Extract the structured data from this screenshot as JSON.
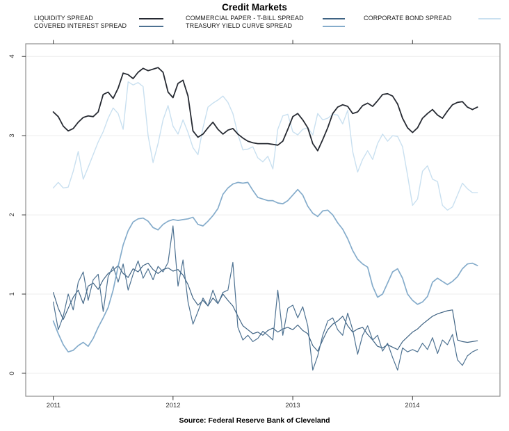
{
  "header": {
    "title": "Credit Markets"
  },
  "footer": {
    "source_note": "Source: Federal Reserve Bank of Cleveland"
  },
  "chart_data": {
    "type": "line",
    "title": "Credit Markets",
    "xlabel": "",
    "ylabel": "",
    "x_start": 2011.0,
    "x_step": 0.0416667,
    "x_ticks": [
      2011,
      2012,
      2013,
      2014
    ],
    "x_tick_labels": [
      "2011",
      "2012",
      "2013",
      "2014"
    ],
    "y_ticks": [
      0,
      1,
      2,
      3,
      4
    ],
    "y_tick_labels": [
      "0",
      "1",
      "2",
      "3",
      "4"
    ],
    "xlim": [
      2010.77,
      2014.73
    ],
    "ylim": [
      -0.29,
      4.16
    ],
    "grid": "horizontal-only",
    "grid_color": "#ececec",
    "box_color": "#8f8f8f",
    "tick_color": "#333333",
    "legend_position": "top",
    "source": "Source: Federal Reserve Bank of Cleveland",
    "series": [
      {
        "name": "LIQUIDITY SPREAD",
        "color": "#262a32",
        "width": 1.8,
        "values": [
          3.3,
          3.24,
          3.12,
          3.06,
          3.09,
          3.17,
          3.23,
          3.25,
          3.24,
          3.3,
          3.52,
          3.55,
          3.47,
          3.6,
          3.79,
          3.77,
          3.72,
          3.8,
          3.85,
          3.82,
          3.84,
          3.86,
          3.8,
          3.55,
          3.48,
          3.66,
          3.7,
          3.5,
          3.06,
          2.98,
          3.02,
          3.1,
          3.17,
          3.08,
          3.02,
          3.07,
          3.09,
          3.02,
          2.97,
          2.93,
          2.91,
          2.9,
          2.9,
          2.9,
          2.89,
          2.88,
          2.93,
          3.08,
          3.24,
          3.28,
          3.2,
          3.1,
          2.9,
          2.81,
          2.95,
          3.1,
          3.28,
          3.36,
          3.39,
          3.37,
          3.28,
          3.3,
          3.38,
          3.41,
          3.37,
          3.44,
          3.52,
          3.53,
          3.5,
          3.4,
          3.22,
          3.1,
          3.04,
          3.1,
          3.22,
          3.28,
          3.33,
          3.26,
          3.22,
          3.31,
          3.39,
          3.42,
          3.43,
          3.36,
          3.33,
          3.36
        ]
      },
      {
        "name": "COVERED INTEREST SPREAD",
        "color": "#4d7191",
        "width": 1.2,
        "values": [
          0.9,
          0.55,
          0.72,
          1.0,
          0.8,
          1.15,
          1.28,
          0.92,
          1.18,
          1.25,
          0.78,
          1.22,
          1.35,
          1.15,
          1.38,
          1.05,
          1.25,
          1.42,
          1.2,
          1.32,
          1.18,
          1.35,
          1.28,
          1.4,
          1.86,
          1.1,
          1.43,
          0.9,
          0.62,
          0.78,
          0.95,
          0.85,
          1.05,
          0.88,
          1.02,
          1.05,
          1.4,
          0.58,
          0.42,
          0.48,
          0.4,
          0.44,
          0.53,
          0.48,
          0.42,
          1.05,
          0.48,
          0.82,
          0.86,
          0.7,
          0.84,
          0.6,
          0.04,
          0.22,
          0.48,
          0.66,
          0.7,
          0.55,
          0.48,
          0.76,
          0.55,
          0.24,
          0.48,
          0.6,
          0.42,
          0.48,
          0.28,
          0.38,
          0.2,
          0.04,
          0.32,
          0.27,
          0.3,
          0.27,
          0.38,
          0.3,
          0.45,
          0.25,
          0.42,
          0.36,
          0.49,
          0.17,
          0.1,
          0.22,
          0.27,
          0.3
        ]
      },
      {
        "name": "COMMERCIAL PAPER - T-BILL SPREAD",
        "color": "#3f6383",
        "width": 1.2,
        "values": [
          1.02,
          0.82,
          0.68,
          0.82,
          0.96,
          1.05,
          0.88,
          1.1,
          1.14,
          1.06,
          1.18,
          1.26,
          1.3,
          1.36,
          1.26,
          1.21,
          1.32,
          1.28,
          1.36,
          1.39,
          1.31,
          1.26,
          1.31,
          1.33,
          1.29,
          1.31,
          1.24,
          1.12,
          0.95,
          0.86,
          0.92,
          0.85,
          0.95,
          0.88,
          1.0,
          0.92,
          0.85,
          0.72,
          0.6,
          0.55,
          0.5,
          0.52,
          0.48,
          0.54,
          0.57,
          0.52,
          0.56,
          0.58,
          0.55,
          0.61,
          0.54,
          0.5,
          0.35,
          0.28,
          0.42,
          0.55,
          0.62,
          0.66,
          0.72,
          0.6,
          0.52,
          0.56,
          0.58,
          0.49,
          0.42,
          0.34,
          0.32,
          0.36,
          0.33,
          0.3,
          0.4,
          0.46,
          0.52,
          0.56,
          0.62,
          0.67,
          0.72,
          0.75,
          0.77,
          0.79,
          0.8,
          0.42,
          0.4,
          0.39,
          0.4,
          0.41
        ]
      },
      {
        "name": "TREASURY YIELD CURVE SPREAD",
        "color": "#85accb",
        "width": 1.7,
        "values": [
          0.66,
          0.5,
          0.36,
          0.27,
          0.29,
          0.35,
          0.39,
          0.34,
          0.44,
          0.58,
          0.7,
          0.83,
          1.05,
          1.35,
          1.62,
          1.8,
          1.91,
          1.95,
          1.96,
          1.92,
          1.84,
          1.81,
          1.88,
          1.92,
          1.94,
          1.93,
          1.94,
          1.95,
          1.97,
          1.88,
          1.86,
          1.92,
          1.99,
          2.08,
          2.26,
          2.34,
          2.39,
          2.41,
          2.4,
          2.41,
          2.31,
          2.22,
          2.2,
          2.18,
          2.18,
          2.15,
          2.14,
          2.18,
          2.25,
          2.32,
          2.25,
          2.11,
          2.02,
          1.98,
          2.05,
          2.06,
          2.0,
          1.9,
          1.82,
          1.7,
          1.55,
          1.44,
          1.38,
          1.34,
          1.1,
          0.96,
          1.0,
          1.14,
          1.28,
          1.32,
          1.2,
          1.0,
          0.92,
          0.87,
          0.9,
          0.97,
          1.15,
          1.2,
          1.16,
          1.12,
          1.16,
          1.22,
          1.32,
          1.38,
          1.39,
          1.36
        ]
      },
      {
        "name": "CORPORATE BOND SPREAD",
        "color": "#c9e0f0",
        "width": 1.4,
        "values": [
          2.34,
          2.41,
          2.34,
          2.35,
          2.55,
          2.8,
          2.45,
          2.6,
          2.76,
          2.92,
          3.05,
          3.22,
          3.35,
          3.28,
          3.08,
          3.68,
          3.64,
          3.67,
          3.62,
          3.0,
          2.66,
          2.9,
          3.2,
          3.38,
          3.12,
          3.02,
          3.2,
          3.04,
          2.85,
          2.76,
          3.1,
          3.36,
          3.41,
          3.45,
          3.5,
          3.42,
          3.28,
          3.02,
          2.82,
          2.83,
          2.86,
          2.72,
          2.67,
          2.74,
          2.58,
          3.08,
          3.25,
          3.27,
          3.05,
          3.01,
          3.08,
          3.1,
          3.01,
          3.28,
          3.2,
          3.22,
          3.27,
          3.26,
          3.15,
          3.32,
          2.8,
          2.54,
          2.7,
          2.81,
          2.7,
          2.9,
          3.02,
          2.93,
          3.0,
          2.99,
          2.86,
          2.5,
          2.12,
          2.2,
          2.55,
          2.62,
          2.45,
          2.42,
          2.12,
          2.06,
          2.1,
          2.25,
          2.4,
          2.33,
          2.28,
          2.28
        ]
      }
    ]
  }
}
